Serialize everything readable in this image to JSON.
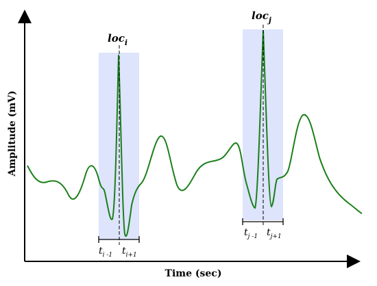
{
  "axes": {
    "x_label": "Time (sec)",
    "y_label": "Amplitude (mV)"
  },
  "peaks": [
    {
      "loc_base": "loc",
      "loc_sub": "i",
      "t_left_base": "t",
      "t_left_sub": "i -1",
      "t_right_base": "t",
      "t_right_sub": "i+1"
    },
    {
      "loc_base": "loc",
      "loc_sub": "j",
      "t_left_base": "t",
      "t_left_sub": "j -1",
      "t_right_base": "t",
      "t_right_sub": "j+1"
    }
  ],
  "colors": {
    "signal": "#1a7f1a",
    "window_fill": "#dde4fb",
    "axis": "#000000"
  }
}
